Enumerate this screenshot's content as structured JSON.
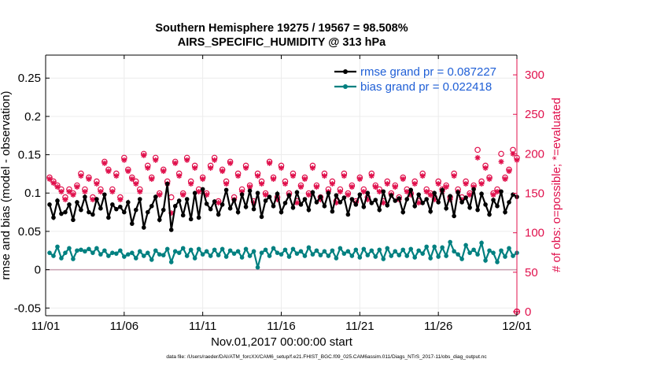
{
  "title_line1": "Southern Hemisphere 19275 / 19567 = 98.508%",
  "title_line2": "AIRS_SPECIFIC_HUMIDITY @ 313 hPa",
  "xlabel": "Nov.01,2017 00:00:00 start",
  "footer": "data file: /Users/raeder/DAI/ATM_forcXX/CAM6_setup/f.e21.FHIST_BGC.f09_025.CAM6assim.011/Diags_NTrS_2017-11/obs_diag_output.nc",
  "colors": {
    "rmse": "#000000",
    "bias": "#008080",
    "obs": "#e0104c",
    "zero_line": "#c8a0b0"
  },
  "chart_data": {
    "type": "line",
    "title": "Southern Hemisphere 19275 / 19567 = 98.508%",
    "subtitle": "AIRS_SPECIFIC_HUMIDITY @ 313 hPa",
    "xlabel": "Nov.01,2017 00:00:00 start",
    "ylabel": "rmse and bias (model - observation)",
    "y2label": "# of obs: o=possible; *=evaluated",
    "x_start": "11/01",
    "x_end": "12/01",
    "x_ticks": [
      "11/01",
      "11/06",
      "11/11",
      "11/16",
      "11/21",
      "11/26",
      "12/01"
    ],
    "ylim": [
      -0.06,
      0.28
    ],
    "y_ticks": [
      -0.05,
      0,
      0.05,
      0.1,
      0.15,
      0.2,
      0.25
    ],
    "y_tick_labels": [
      "-0.05",
      "0",
      "0.05",
      "0.1",
      "0.15",
      "0.2",
      "0.25"
    ],
    "y2lim": [
      -5,
      325
    ],
    "y2_ticks": [
      0,
      50,
      100,
      150,
      200,
      250,
      300
    ],
    "y2_tick_labels": [
      "0",
      "50",
      "100",
      "150",
      "200",
      "250",
      "300"
    ],
    "grid": true,
    "legend_position": "top-right",
    "x_days": [
      0.25,
      0.5,
      0.75,
      1.0,
      1.25,
      1.5,
      1.75,
      2.0,
      2.25,
      2.5,
      2.75,
      3.0,
      3.25,
      3.5,
      3.75,
      4.0,
      4.25,
      4.5,
      4.75,
      5.0,
      5.25,
      5.5,
      5.75,
      6.0,
      6.25,
      6.5,
      6.75,
      7.0,
      7.25,
      7.5,
      7.75,
      8.0,
      8.25,
      8.5,
      8.75,
      9.0,
      9.25,
      9.5,
      9.75,
      10.0,
      10.25,
      10.5,
      10.75,
      11.0,
      11.25,
      11.5,
      11.75,
      12.0,
      12.25,
      12.5,
      12.75,
      13.0,
      13.25,
      13.5,
      13.75,
      14.0,
      14.25,
      14.5,
      14.75,
      15.0,
      15.25,
      15.5,
      15.75,
      16.0,
      16.25,
      16.5,
      16.75,
      17.0,
      17.25,
      17.5,
      17.75,
      18.0,
      18.25,
      18.5,
      18.75,
      19.0,
      19.25,
      19.5,
      19.75,
      20.0,
      20.25,
      20.5,
      20.75,
      21.0,
      21.25,
      21.5,
      21.75,
      22.0,
      22.25,
      22.5,
      22.75,
      23.0,
      23.25,
      23.5,
      23.75,
      24.0,
      24.25,
      24.5,
      24.75,
      25.0,
      25.25,
      25.5,
      25.75,
      26.0,
      26.25,
      26.5,
      26.75,
      27.0,
      27.25,
      27.5,
      27.75,
      28.0,
      28.25,
      28.5,
      28.75,
      29.0,
      29.25,
      29.5,
      29.75,
      30.0
    ],
    "series": [
      {
        "name": "rmse grand pr = 0.087227",
        "axis": "left",
        "values": [
          0.085,
          0.068,
          0.09,
          0.073,
          0.075,
          0.085,
          0.065,
          0.088,
          0.078,
          0.095,
          0.075,
          0.072,
          0.092,
          0.08,
          0.098,
          0.068,
          0.085,
          0.079,
          0.082,
          0.075,
          0.088,
          0.06,
          0.078,
          0.092,
          0.055,
          0.075,
          0.083,
          0.095,
          0.065,
          0.078,
          0.112,
          0.052,
          0.083,
          0.09,
          0.071,
          0.092,
          0.066,
          0.1,
          0.068,
          0.105,
          0.086,
          0.079,
          0.089,
          0.072,
          0.085,
          0.104,
          0.08,
          0.091,
          0.075,
          0.098,
          0.082,
          0.103,
          0.079,
          0.1,
          0.069,
          0.09,
          0.095,
          0.083,
          0.099,
          0.075,
          0.087,
          0.097,
          0.081,
          0.101,
          0.085,
          0.092,
          0.078,
          0.101,
          0.088,
          0.095,
          0.083,
          0.1,
          0.076,
          0.097,
          0.088,
          0.094,
          0.072,
          0.092,
          0.085,
          0.098,
          0.082,
          0.1,
          0.087,
          0.091,
          0.078,
          0.102,
          0.084,
          0.097,
          0.09,
          0.093,
          0.075,
          0.092,
          0.104,
          0.083,
          0.098,
          0.087,
          0.092,
          0.076,
          0.1,
          0.088,
          0.104,
          0.08,
          0.096,
          0.07,
          0.101,
          0.088,
          0.094,
          0.081,
          0.105,
          0.078,
          0.099,
          0.085,
          0.072,
          0.091,
          0.083,
          0.102,
          0.075,
          0.088,
          0.098,
          0.095
        ],
        "color": "#000000"
      },
      {
        "name": "bias grand pr = 0.022418",
        "axis": "left",
        "values": [
          0.022,
          0.018,
          0.03,
          0.015,
          0.022,
          0.028,
          0.014,
          0.025,
          0.026,
          0.024,
          0.027,
          0.022,
          0.028,
          0.02,
          0.025,
          0.018,
          0.022,
          0.021,
          0.025,
          0.017,
          0.02,
          0.022,
          0.015,
          0.024,
          0.018,
          0.022,
          0.013,
          0.025,
          0.02,
          0.019,
          0.027,
          0.01,
          0.024,
          0.022,
          0.028,
          0.018,
          0.026,
          0.015,
          0.027,
          0.02,
          0.024,
          0.018,
          0.026,
          0.019,
          0.027,
          0.017,
          0.025,
          0.021,
          0.024,
          0.016,
          0.027,
          0.018,
          0.024,
          0.003,
          0.022,
          0.026,
          0.018,
          0.028,
          0.022,
          0.02,
          0.026,
          0.017,
          0.027,
          0.021,
          0.024,
          0.018,
          0.029,
          0.02,
          0.025,
          0.019,
          0.024,
          0.018,
          0.025,
          0.015,
          0.028,
          0.021,
          0.024,
          0.018,
          0.026,
          0.016,
          0.027,
          0.019,
          0.025,
          0.017,
          0.026,
          0.014,
          0.028,
          0.018,
          0.024,
          0.019,
          0.026,
          0.018,
          0.027,
          0.016,
          0.025,
          0.021,
          0.03,
          0.015,
          0.03,
          0.017,
          0.029,
          0.018,
          0.036,
          0.024,
          0.02,
          0.014,
          0.032,
          0.022,
          0.026,
          0.02,
          0.035,
          0.012,
          0.025,
          0.022,
          0.01,
          0.025,
          0.017,
          0.028,
          0.018,
          0.022
        ],
        "color": "#008080"
      },
      {
        "name": "possible",
        "axis": "right",
        "values": [
          170,
          165,
          160,
          155,
          145,
          155,
          150,
          160,
          175,
          155,
          170,
          145,
          165,
          155,
          190,
          180,
          155,
          175,
          145,
          195,
          180,
          170,
          165,
          155,
          200,
          185,
          170,
          195,
          150,
          180,
          165,
          145,
          190,
          175,
          150,
          195,
          165,
          185,
          155,
          170,
          150,
          185,
          195,
          140,
          180,
          165,
          190,
          145,
          175,
          155,
          185,
          160,
          140,
          175,
          165,
          150,
          190,
          170,
          145,
          185,
          165,
          150,
          175,
          140,
          160,
          170,
          150,
          185,
          160,
          145,
          175,
          155,
          165,
          140,
          155,
          175,
          150,
          160,
          140,
          170,
          155,
          145,
          175,
          160,
          155,
          140,
          165,
          150,
          160,
          145,
          170,
          155,
          150,
          165,
          140,
          175,
          155,
          150,
          145,
          165,
          155,
          160,
          145,
          175,
          155,
          145,
          165,
          150,
          160,
          205,
          165,
          185,
          170,
          150,
          155,
          200,
          170,
          180,
          205,
          195
        ],
        "color": "#e0104c"
      },
      {
        "name": "evaluated",
        "axis": "right",
        "values": [
          168,
          163,
          158,
          152,
          142,
          152,
          148,
          158,
          172,
          152,
          168,
          142,
          162,
          152,
          188,
          178,
          152,
          172,
          142,
          192,
          178,
          168,
          162,
          152,
          198,
          182,
          168,
          192,
          148,
          178,
          162,
          125,
          188,
          172,
          148,
          192,
          162,
          182,
          152,
          168,
          148,
          182,
          192,
          138,
          178,
          162,
          188,
          142,
          172,
          152,
          182,
          158,
          138,
          172,
          162,
          148,
          188,
          168,
          142,
          182,
          162,
          148,
          172,
          138,
          158,
          168,
          148,
          182,
          158,
          142,
          172,
          152,
          162,
          138,
          152,
          172,
          148,
          158,
          138,
          168,
          152,
          142,
          172,
          158,
          152,
          138,
          162,
          148,
          158,
          142,
          168,
          152,
          148,
          162,
          138,
          172,
          152,
          148,
          142,
          162,
          152,
          158,
          142,
          172,
          152,
          142,
          162,
          148,
          158,
          195,
          162,
          182,
          168,
          148,
          152,
          190,
          168,
          178,
          200,
          192
        ],
        "color": "#e0104c"
      }
    ],
    "end_marker": {
      "x": 30.0,
      "possible": 0,
      "evaluated": 0
    }
  }
}
